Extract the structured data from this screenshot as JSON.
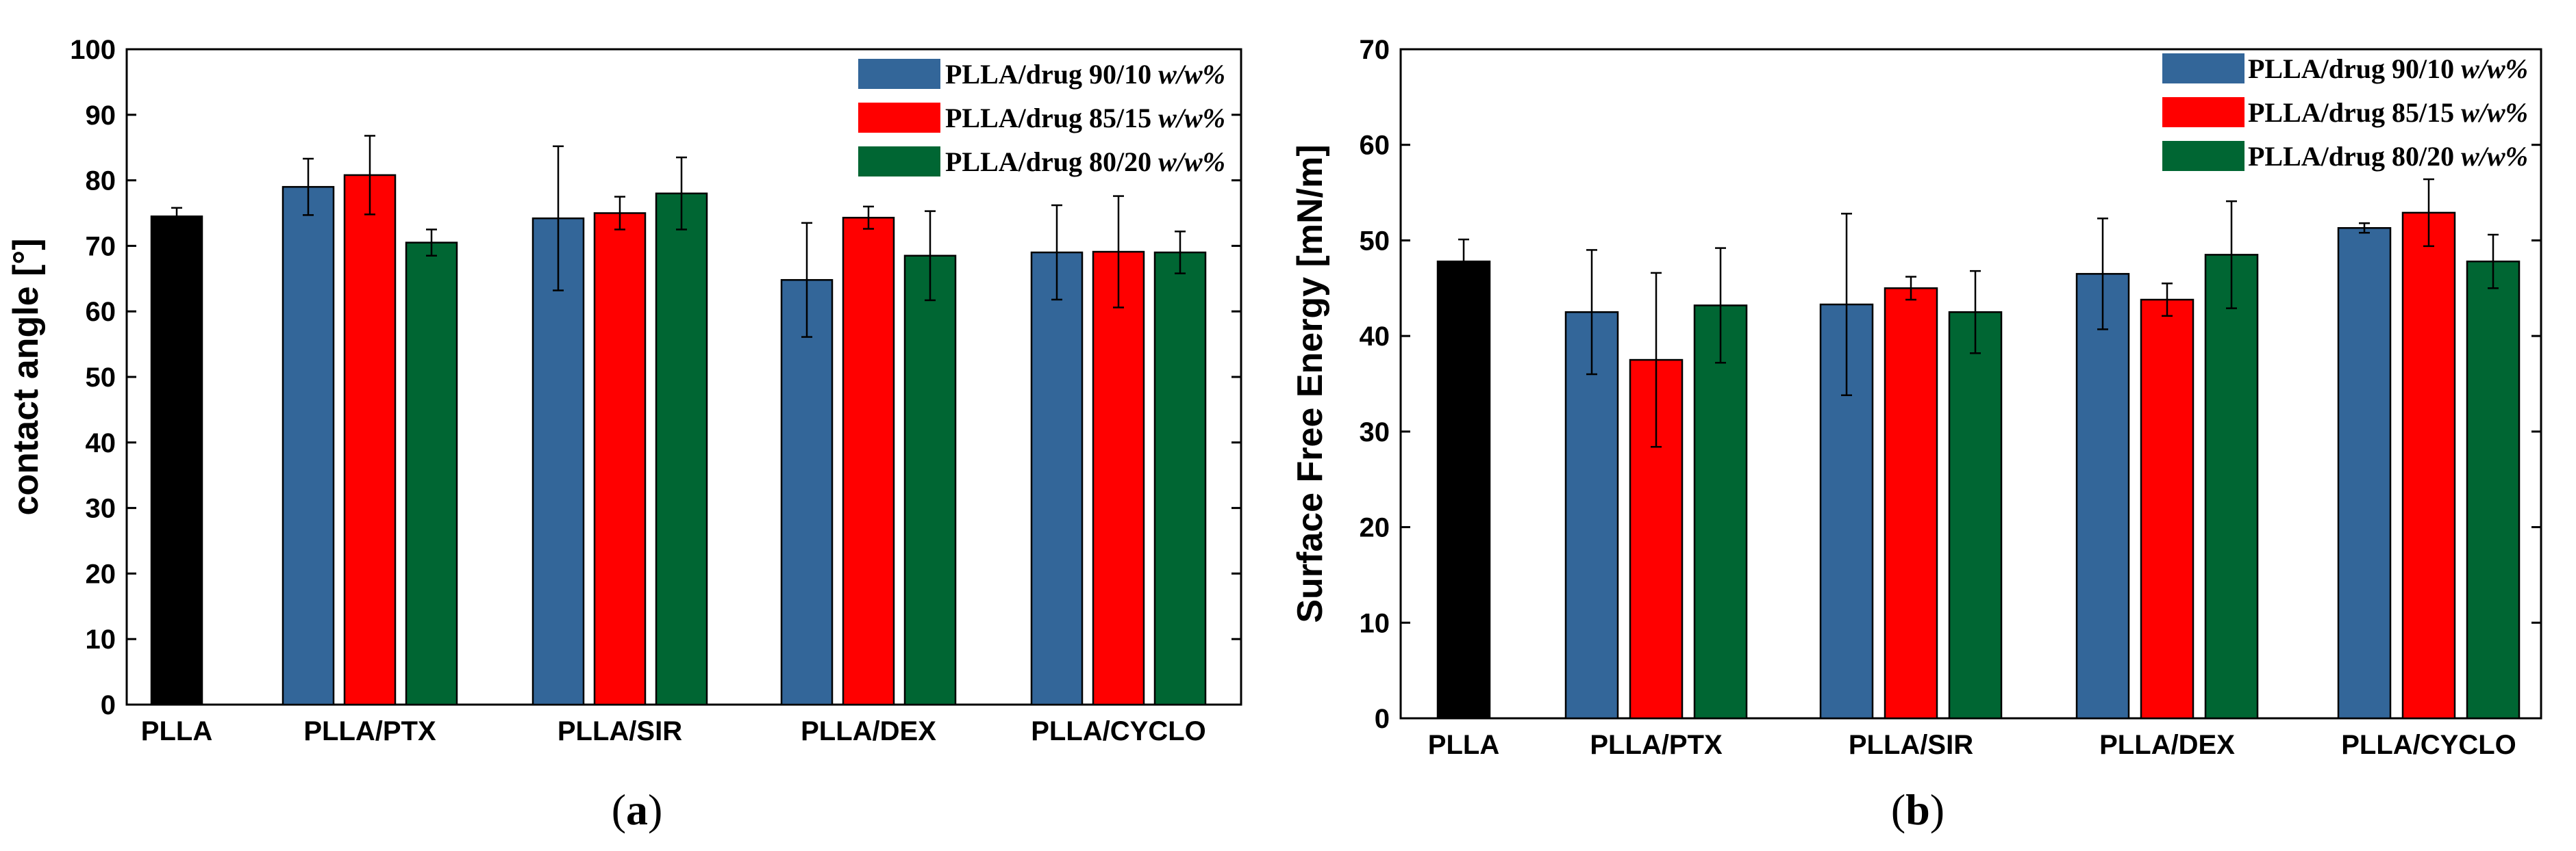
{
  "colors": {
    "plla": "#000000",
    "ratio_90_10": "#336699",
    "ratio_85_15": "#ff0000",
    "ratio_80_20": "#006633"
  },
  "chart_data": [
    {
      "id": "a",
      "type": "bar",
      "caption_open": "(",
      "caption_letter": "a",
      "caption_close": ")",
      "title": "",
      "xlabel": "",
      "ylabel": "contact angle [°]",
      "ylim": [
        0,
        100
      ],
      "yticks": [
        "0",
        "10",
        "20",
        "30",
        "40",
        "50",
        "60",
        "70",
        "80",
        "90",
        "100"
      ],
      "categories": [
        "PLLA",
        "PLLA/PTX",
        "PLLA/SIR",
        "PLLA/DEX",
        "PLLA/CYCLO"
      ],
      "legend_position": "top-right",
      "series": [
        {
          "name": "PLLA",
          "color_key": "plla",
          "in_legend": false,
          "values": [
            74.5,
            null,
            null,
            null,
            null
          ],
          "errors": [
            1.3,
            null,
            null,
            null,
            null
          ]
        },
        {
          "name": "PLLA/drug 90/10",
          "unit": "w/w%",
          "color_key": "ratio_90_10",
          "in_legend": true,
          "values": [
            null,
            79,
            74.2,
            64.8,
            69
          ],
          "errors": [
            null,
            4.3,
            11,
            8.7,
            7.2
          ]
        },
        {
          "name": "PLLA/drug 85/15",
          "unit": "w/w%",
          "color_key": "ratio_85_15",
          "in_legend": true,
          "values": [
            null,
            80.8,
            75,
            74.3,
            69.1
          ],
          "errors": [
            null,
            6,
            2.5,
            1.7,
            8.5
          ]
        },
        {
          "name": "PLLA/drug 80/20",
          "unit": "w/w%",
          "color_key": "ratio_80_20",
          "in_legend": true,
          "values": [
            null,
            70.5,
            78,
            68.5,
            69
          ],
          "errors": [
            null,
            2,
            5.5,
            6.8,
            3.2
          ]
        }
      ]
    },
    {
      "id": "b",
      "type": "bar",
      "caption_open": "(",
      "caption_letter": "b",
      "caption_close": ")",
      "title": "",
      "xlabel": "",
      "ylabel": "Surface Free Energy [mN/m]",
      "ylim": [
        0,
        70
      ],
      "yticks": [
        "0",
        "10",
        "20",
        "30",
        "40",
        "50",
        "60",
        "70"
      ],
      "categories": [
        "PLLA",
        "PLLA/PTX",
        "PLLA/SIR",
        "PLLA/DEX",
        "PLLA/CYCLO"
      ],
      "legend_position": "top-right",
      "series": [
        {
          "name": "PLLA",
          "color_key": "plla",
          "in_legend": false,
          "values": [
            47.8,
            null,
            null,
            null,
            null
          ],
          "errors": [
            2.3,
            null,
            null,
            null,
            null
          ]
        },
        {
          "name": "PLLA/drug 90/10",
          "unit": "w/w%",
          "color_key": "ratio_90_10",
          "in_legend": true,
          "values": [
            null,
            42.5,
            43.3,
            46.5,
            51.3
          ],
          "errors": [
            null,
            6.5,
            9.5,
            5.8,
            0.5
          ]
        },
        {
          "name": "PLLA/drug 85/15",
          "unit": "w/w%",
          "color_key": "ratio_85_15",
          "in_legend": true,
          "values": [
            null,
            37.5,
            45,
            43.8,
            52.9
          ],
          "errors": [
            null,
            9.1,
            1.2,
            1.7,
            3.5
          ]
        },
        {
          "name": "PLLA/drug 80/20",
          "unit": "w/w%",
          "color_key": "ratio_80_20",
          "in_legend": true,
          "values": [
            null,
            43.2,
            42.5,
            48.5,
            47.8
          ],
          "errors": [
            null,
            6,
            4.3,
            5.6,
            2.8
          ]
        }
      ]
    }
  ]
}
